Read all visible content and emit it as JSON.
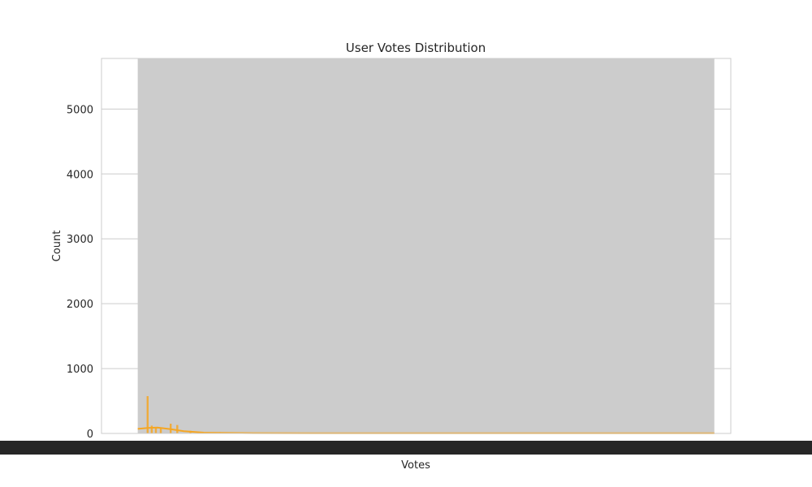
{
  "chart_data": {
    "type": "bar",
    "title": "User Votes Distribution",
    "xlabel": "Votes",
    "ylabel": "Count",
    "ylim": [
      0,
      5780
    ],
    "xlim": [
      -220000,
      3600000
    ],
    "yticks": [
      0,
      1000,
      2000,
      3000,
      4000,
      5000
    ],
    "grid": true,
    "legend": "none",
    "colors": {
      "bars": "#f5a623",
      "kde": "#f5a623",
      "overplotted_edges": "#cccccc",
      "grid": "#cccccc",
      "frame": "#cccccc",
      "text": "#262626",
      "overlapping_tick_labels": "#262626"
    },
    "series": [
      {
        "values_description": "",
        "bars": [
          {
            "x": 0,
            "y": 5780
          },
          {
            "x": 60000,
            "y": 575
          },
          {
            "x": 85000,
            "y": 120
          },
          {
            "x": 110000,
            "y": 90
          },
          {
            "x": 140000,
            "y": 75
          },
          {
            "x": 200000,
            "y": 150
          },
          {
            "x": 240000,
            "y": 130
          },
          {
            "x": 320000,
            "y": 40
          },
          {
            "x": 500000,
            "y": 20
          },
          {
            "x": 800000,
            "y": 10
          },
          {
            "x": 1500000,
            "y": 6
          },
          {
            "x": 2500000,
            "y": 4
          },
          {
            "x": 3500000,
            "y": 3
          }
        ],
        "kde": [
          {
            "x": 0,
            "y": 70
          },
          {
            "x": 60000,
            "y": 85
          },
          {
            "x": 120000,
            "y": 90
          },
          {
            "x": 200000,
            "y": 65
          },
          {
            "x": 280000,
            "y": 35
          },
          {
            "x": 400000,
            "y": 12
          },
          {
            "x": 700000,
            "y": 4
          },
          {
            "x": 1500000,
            "y": 3
          },
          {
            "x": 3500000,
            "y": 3
          }
        ]
      }
    ]
  }
}
